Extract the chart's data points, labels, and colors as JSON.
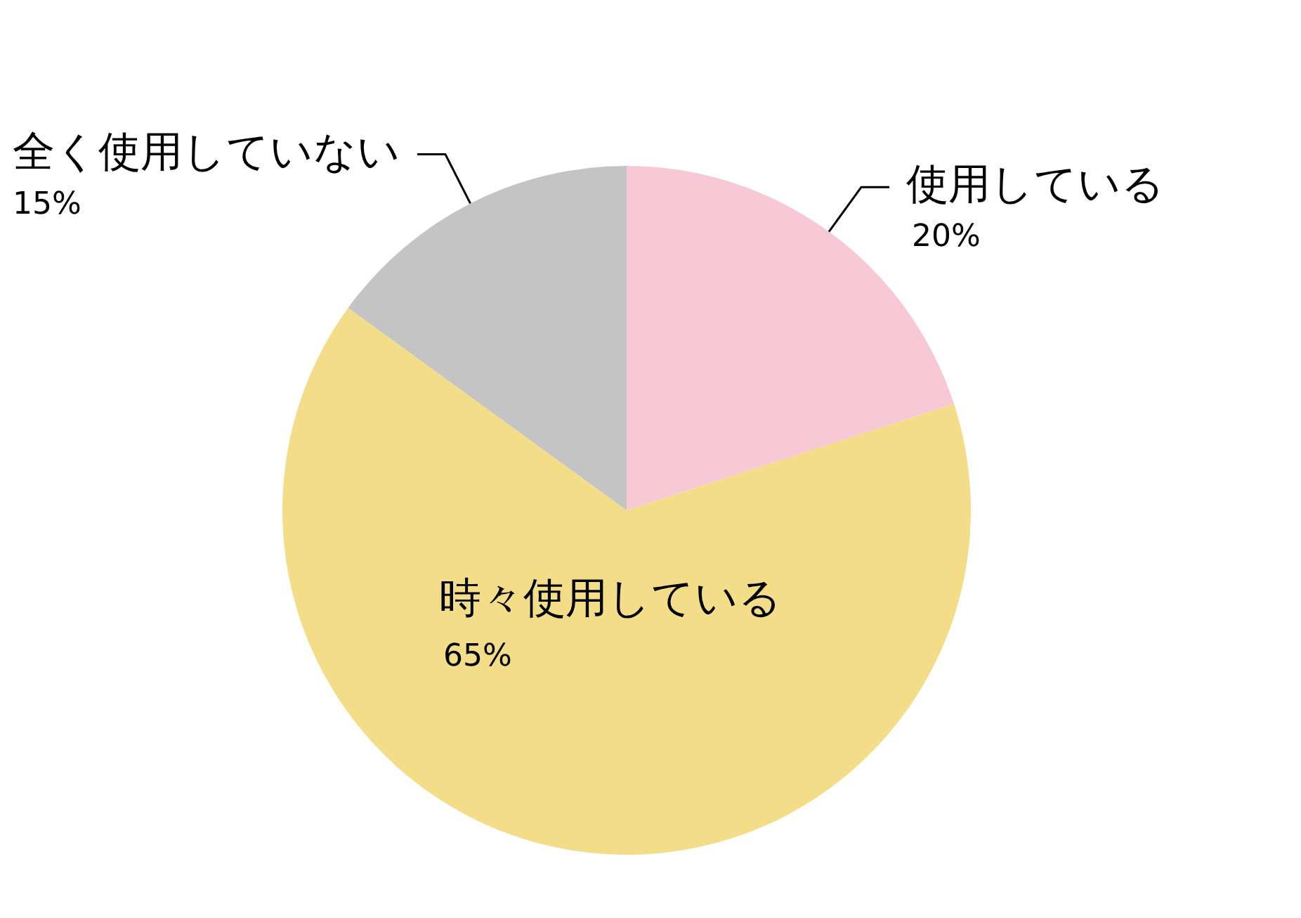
{
  "chart_data": {
    "type": "pie",
    "categories": [
      "使用している",
      "時々使用している",
      "全く使用していない"
    ],
    "values": [
      20,
      65,
      15
    ],
    "colors": [
      "#f7c8d6",
      "#f3dd88",
      "#c4c4c4"
    ],
    "value_labels": [
      "20%",
      "65%",
      "15%"
    ]
  }
}
